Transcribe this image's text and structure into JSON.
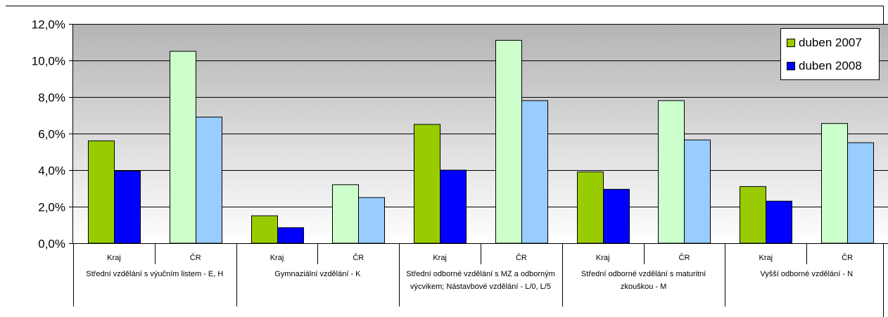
{
  "chart_data": {
    "type": "bar",
    "y_ticks": [
      "0,0%",
      "2,0%",
      "4,0%",
      "6,0%",
      "8,0%",
      "10,0%",
      "12,0%"
    ],
    "ylim": [
      0,
      12
    ],
    "groups": [
      "Střední vzdělání s výučním listem - E, H",
      "Gymnaziální vzdělání - K",
      "Střední odborné vzdělání           s MZ a odborným výcvikem; Nástavbové vzdělání - L/0, L/5",
      "Střední odborné vzdělání            s maturitní zkouškou - M",
      "Vyšší odborné vzdělání - N"
    ],
    "subcategories": [
      "Kraj",
      "ČR"
    ],
    "series": [
      {
        "name": "duben 2007",
        "values": [
          [
            5.6,
            10.5
          ],
          [
            1.5,
            3.2
          ],
          [
            6.5,
            11.1
          ],
          [
            3.9,
            7.8
          ],
          [
            3.1,
            6.55
          ]
        ]
      },
      {
        "name": "duben 2008",
        "values": [
          [
            3.95,
            6.9
          ],
          [
            0.85,
            2.5
          ],
          [
            4.0,
            7.8
          ],
          [
            2.95,
            5.65
          ],
          [
            2.3,
            5.5
          ]
        ]
      }
    ],
    "colors": {
      "kraj_2007": "#99cc00",
      "kraj_2008": "#0000ff",
      "cr_2007": "#ccffcc",
      "cr_2008": "#99ccff",
      "plot_top": "#b4b4b4",
      "plot_bottom": "#ffffff"
    },
    "legend_position": "top-right",
    "grid": true
  }
}
